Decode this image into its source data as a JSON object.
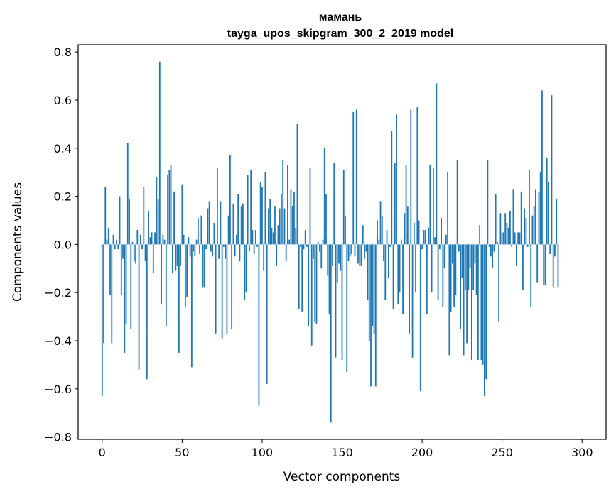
{
  "chart_data": {
    "type": "bar",
    "title": "мамань",
    "subtitle": "tayga_upos_skipgram_300_2_2019 model",
    "xlabel": "Vector components",
    "ylabel": "Components values",
    "xlim": [
      -15,
      315
    ],
    "ylim": [
      -0.81,
      0.83
    ],
    "xticks": [
      0,
      50,
      100,
      150,
      200,
      250,
      300
    ],
    "yticks": [
      -0.8,
      -0.6,
      -0.4,
      -0.2,
      0.0,
      0.2,
      0.4,
      0.6,
      0.8
    ],
    "xtick_labels": [
      "0",
      "50",
      "100",
      "150",
      "200",
      "250",
      "300"
    ],
    "ytick_labels": [
      "−0.8",
      "−0.6",
      "−0.4",
      "−0.2",
      "0.0",
      "0.2",
      "0.4",
      "0.6",
      "0.8"
    ],
    "bar_color": "#1f77b4",
    "grid": false,
    "values": [
      -0.63,
      -0.41,
      0.24,
      0.02,
      0.07,
      -0.21,
      -0.41,
      0.04,
      -0.02,
      0.02,
      -0.02,
      0.2,
      -0.21,
      -0.06,
      -0.45,
      -0.33,
      0.42,
      0.19,
      -0.35,
      0.01,
      -0.07,
      -0.08,
      0.06,
      -0.52,
      0.04,
      -0.02,
      0.24,
      -0.07,
      -0.56,
      0.14,
      0.03,
      0.05,
      -0.12,
      0.05,
      0.28,
      0.19,
      0.76,
      -0.25,
      0.04,
      0.02,
      -0.34,
      0.29,
      0.31,
      0.33,
      -0.12,
      0.22,
      -0.11,
      -0.09,
      -0.45,
      -0.09,
      0.25,
      0.04,
      -0.26,
      -0.22,
      0.03,
      -0.05,
      -0.51,
      -0.03,
      -0.05,
      0.02,
      0.11,
      -0.04,
      0.12,
      -0.18,
      -0.18,
      -0.02,
      0.15,
      0.18,
      -0.03,
      -0.05,
      0.09,
      -0.37,
      0.32,
      -0.06,
      0.18,
      -0.39,
      -0.01,
      -0.06,
      -0.37,
      0.12,
      0.37,
      -0.35,
      0.17,
      -0.05,
      0.04,
      0.21,
      -0.07,
      0.16,
      0.17,
      -0.23,
      -0.2,
      0.29,
      -0.03,
      0.31,
      0.06,
      -0.04,
      0.06,
      -0.01,
      -0.67,
      0.26,
      0.24,
      -0.11,
      0.3,
      -0.58,
      0.15,
      0.19,
      0.07,
      0.05,
      0.16,
      -0.09,
      0.08,
      0.15,
      0.21,
      0.35,
      0.15,
      -0.07,
      0.33,
      0.02,
      0.23,
      0.16,
      0.22,
      0.07,
      0.5,
      -0.27,
      -0.01,
      -0.28,
      -0.02,
      0.06,
      -0.01,
      -0.34,
      0.32,
      -0.42,
      -0.06,
      -0.32,
      -0.33,
      0.01,
      -0.03,
      -0.1,
      0.02,
      0.4,
      0.21,
      -0.13,
      -0.29,
      -0.74,
      -0.09,
      0.34,
      -0.47,
      -0.16,
      -0.08,
      -0.11,
      -0.48,
      0.31,
      0.12,
      -0.53,
      -0.07,
      -0.05,
      -0.04,
      0.55,
      -0.05,
      0.56,
      -0.08,
      -0.09,
      -0.09,
      0.08,
      -0.06,
      -0.03,
      -0.23,
      -0.4,
      -0.59,
      -0.34,
      -0.37,
      -0.59,
      0.1,
      0.02,
      0.18,
      0.12,
      -0.07,
      -0.23,
      0.06,
      -0.14,
      -0.01,
      0.47,
      -0.27,
      0.34,
      0.54,
      -0.25,
      -0.2,
      0.02,
      -0.29,
      0.13,
      0.33,
      0.16,
      -0.37,
      0.56,
      -0.47,
      0.09,
      -0.2,
      0.57,
      0.1,
      -0.61,
      -0.02,
      0.06,
      0.06,
      -0.29,
      0.07,
      0.33,
      -0.2,
      0.32,
      0.03,
      0.67,
      -0.23,
      -0.02,
      0.11,
      -0.26,
      -0.1,
      0.04,
      0.3,
      -0.46,
      -0.28,
      -0.08,
      -0.26,
      -0.21,
      0.35,
      -0.03,
      -0.35,
      -0.14,
      -0.46,
      -0.19,
      -0.41,
      -0.19,
      -0.1,
      -0.48,
      -0.19,
      -0.08,
      -0.21,
      -0.48,
      0.08,
      -0.48,
      -0.5,
      -0.63,
      -0.56,
      0.35,
      -0.01,
      -0.05,
      -0.1,
      -0.03,
      0.21,
      0.01,
      -0.32,
      0.13,
      0.05,
      0.05,
      0.13,
      0.09,
      0.07,
      0.14,
      -0.01,
      0.23,
      0.05,
      -0.09,
      0.05,
      0.05,
      0.22,
      -0.19,
      0.15,
      0.11,
      -0.01,
      0.31,
      -0.26,
      0.12,
      0.16,
      0.23,
      -0.16,
      0.22,
      0.3,
      0.64,
      -0.17,
      -0.17,
      0.36,
      0.26,
      -0.04,
      0.62,
      -0.18,
      -0.05,
      0.19,
      -0.18
    ]
  }
}
